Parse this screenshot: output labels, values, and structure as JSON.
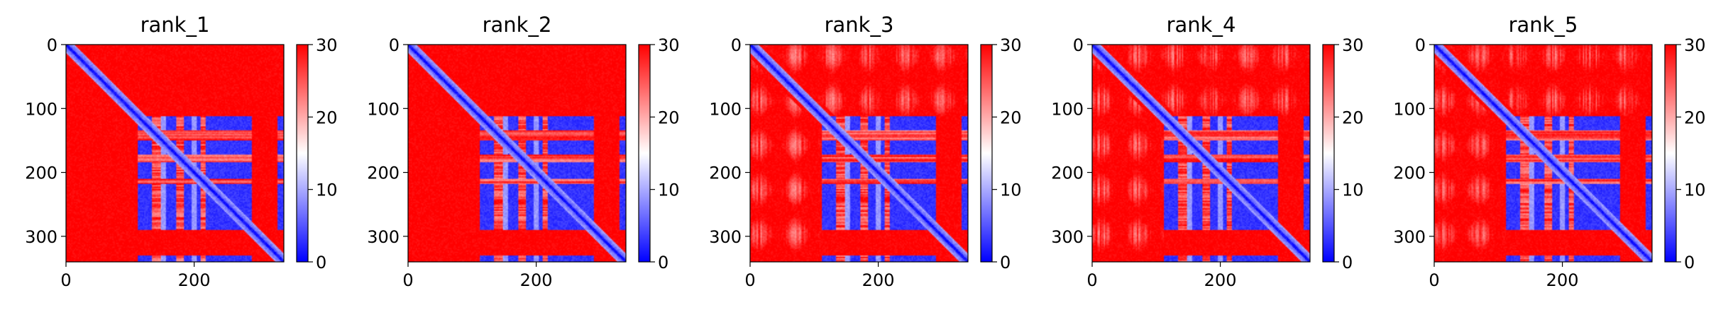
{
  "chart_data": [
    {
      "type": "heatmap",
      "title": "rank_1",
      "n": 340,
      "xlim": [
        0,
        340
      ],
      "ylim": [
        340,
        0
      ],
      "x_ticks": [
        0,
        200
      ],
      "y_ticks": [
        0,
        100,
        200,
        300
      ],
      "colorbar": {
        "min": 0,
        "max": 30,
        "ticks": [
          0,
          10,
          20,
          30
        ]
      }
    },
    {
      "type": "heatmap",
      "title": "rank_2",
      "n": 340,
      "xlim": [
        0,
        340
      ],
      "ylim": [
        340,
        0
      ],
      "x_ticks": [
        0,
        200
      ],
      "y_ticks": [
        0,
        100,
        200,
        300
      ],
      "colorbar": {
        "min": 0,
        "max": 30,
        "ticks": [
          0,
          10,
          20,
          30
        ]
      }
    },
    {
      "type": "heatmap",
      "title": "rank_3",
      "n": 340,
      "xlim": [
        0,
        340
      ],
      "ylim": [
        340,
        0
      ],
      "x_ticks": [
        0,
        200
      ],
      "y_ticks": [
        0,
        100,
        200,
        300
      ],
      "colorbar": {
        "min": 0,
        "max": 30,
        "ticks": [
          0,
          10,
          20,
          30
        ]
      }
    },
    {
      "type": "heatmap",
      "title": "rank_4",
      "n": 340,
      "xlim": [
        0,
        340
      ],
      "ylim": [
        340,
        0
      ],
      "x_ticks": [
        0,
        200
      ],
      "y_ticks": [
        0,
        100,
        200,
        300
      ],
      "colorbar": {
        "min": 0,
        "max": 30,
        "ticks": [
          0,
          10,
          20,
          30
        ]
      }
    },
    {
      "type": "heatmap",
      "title": "rank_5",
      "n": 340,
      "xlim": [
        0,
        340
      ],
      "ylim": [
        340,
        0
      ],
      "x_ticks": [
        0,
        200
      ],
      "y_ticks": [
        0,
        100,
        200,
        300
      ],
      "colorbar": {
        "min": 0,
        "max": 30,
        "ticks": [
          0,
          10,
          20,
          30
        ]
      }
    }
  ],
  "colormap": {
    "low": "#0000ff",
    "mid": "#ffffff",
    "high": "#ff0000"
  }
}
